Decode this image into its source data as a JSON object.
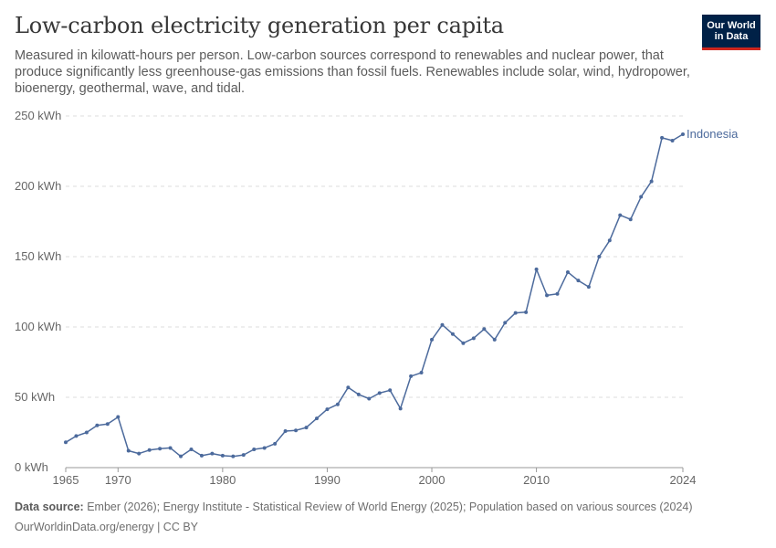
{
  "header": {
    "title": "Low-carbon electricity generation per capita",
    "subtitle": "Measured in kilowatt-hours per person. Low-carbon sources correspond to renewables and nuclear power, that produce significantly less greenhouse-gas emissions than fossil fuels. Renewables include solar, wind, hydropower, bioenergy, geothermal, wave, and tidal."
  },
  "logo": {
    "line1": "Our World",
    "line2": "in Data"
  },
  "footer": {
    "source_label": "Data source:",
    "source_text": "Ember (2026); Energy Institute - Statistical Review of World Energy (2025); Population based on various sources (2024)",
    "url_text": "OurWorldinData.org/energy | CC BY"
  },
  "colors": {
    "series": "#4c6a9c",
    "grid": "#dddddd",
    "axis": "#999999",
    "brand": "#002147",
    "brand_accent": "#ce261e"
  },
  "chart_data": {
    "type": "line",
    "title": "Low-carbon electricity generation per capita",
    "xlabel": "",
    "ylabel": "",
    "xlim": [
      1965,
      2024
    ],
    "ylim": [
      0,
      250
    ],
    "y_ticks": [
      {
        "value": 0,
        "label": "0 kWh"
      },
      {
        "value": 50,
        "label": "50 kWh"
      },
      {
        "value": 100,
        "label": "100 kWh"
      },
      {
        "value": 150,
        "label": "150 kWh"
      },
      {
        "value": 200,
        "label": "200 kWh"
      },
      {
        "value": 250,
        "label": "250 kWh"
      }
    ],
    "x_ticks": [
      {
        "value": 1965,
        "label": "1965"
      },
      {
        "value": 1970,
        "label": "1970"
      },
      {
        "value": 1980,
        "label": "1980"
      },
      {
        "value": 1990,
        "label": "1990"
      },
      {
        "value": 2000,
        "label": "2000"
      },
      {
        "value": 2010,
        "label": "2010"
      },
      {
        "value": 2024,
        "label": "2024"
      }
    ],
    "grid": true,
    "series": [
      {
        "name": "Indonesia",
        "x": [
          1965,
          1966,
          1967,
          1968,
          1969,
          1970,
          1971,
          1972,
          1973,
          1974,
          1975,
          1976,
          1977,
          1978,
          1979,
          1980,
          1981,
          1982,
          1983,
          1984,
          1985,
          1986,
          1987,
          1988,
          1989,
          1990,
          1991,
          1992,
          1993,
          1994,
          1995,
          1996,
          1997,
          1998,
          1999,
          2000,
          2001,
          2002,
          2003,
          2004,
          2005,
          2006,
          2007,
          2008,
          2009,
          2010,
          2011,
          2012,
          2013,
          2014,
          2015,
          2016,
          2017,
          2018,
          2019,
          2020,
          2021,
          2022,
          2023,
          2024
        ],
        "values": [
          18,
          22.5,
          25,
          30,
          31,
          36,
          12,
          10,
          12.5,
          13.5,
          14,
          8,
          13,
          8.5,
          10,
          8.5,
          8,
          9,
          13,
          14,
          17,
          26,
          26.5,
          28.5,
          35,
          41.5,
          45,
          57,
          52,
          49,
          53,
          55,
          42,
          65,
          67.5,
          91,
          101.5,
          95,
          88.5,
          92,
          98.5,
          91,
          103,
          110,
          110.5,
          141,
          122.5,
          123.5,
          139,
          133,
          128.5,
          150,
          161.5,
          179.5,
          176.5,
          192.5,
          203.5,
          234.5,
          232.5,
          237
        ]
      }
    ]
  }
}
